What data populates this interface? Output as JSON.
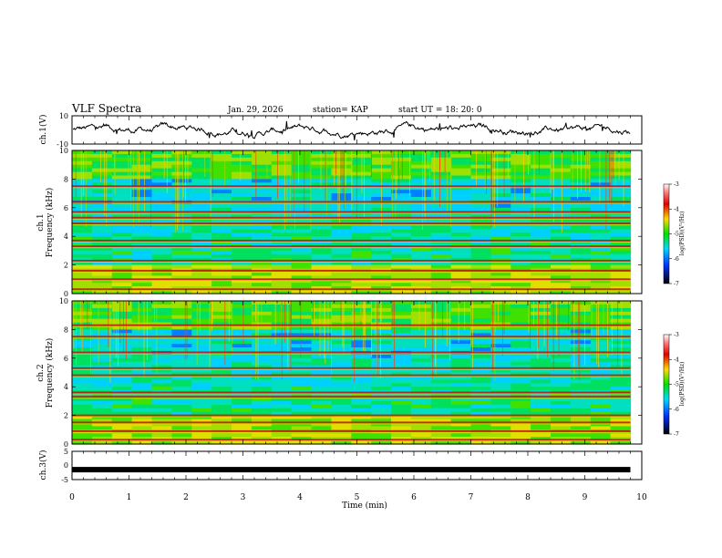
{
  "header": {
    "title": "VLF Spectra",
    "date": "Jan. 29, 2026",
    "station": "station= KAP",
    "start": "start UT =  18: 20: 0"
  },
  "chart_data": [
    {
      "type": "line",
      "panel": "ch1-waveform",
      "ylabel": "ch.1(V)",
      "ylim": [
        -10,
        10
      ],
      "yticks": [
        "10",
        "-10"
      ],
      "trace_mean": 0,
      "trace_noise_amplitude": 3
    },
    {
      "type": "heatmap",
      "panel": "ch1-spectrogram",
      "ylabel_top": "ch.1",
      "ylabel": "Frequency (kHz)",
      "ylim": [
        0,
        10
      ],
      "yticks": [
        "0",
        "2",
        "4",
        "6",
        "8",
        "10"
      ],
      "colorbar": {
        "label": "log(PSD)(V²/Hz)",
        "ticks": [
          "-3",
          "-4",
          "-5",
          "-6",
          "-7"
        ],
        "range": [
          -7,
          -3
        ]
      },
      "data_end_min": 9.8,
      "bands_khz": [
        0.3,
        1.0,
        1.6,
        2.3,
        3.3,
        3.7,
        4.9,
        5.3,
        5.7,
        6.4,
        7.5
      ]
    },
    {
      "type": "heatmap",
      "panel": "ch2-spectrogram",
      "ylabel_top": "ch.2",
      "ylabel": "Frequency (kHz)",
      "ylim": [
        0,
        10
      ],
      "yticks": [
        "0",
        "2",
        "4",
        "6",
        "8",
        "10"
      ],
      "colorbar": {
        "label": "log(PSD)(V²/Hz)",
        "ticks": [
          "-3",
          "-4",
          "-5",
          "-6",
          "-7"
        ],
        "range": [
          -7,
          -3
        ]
      },
      "data_end_min": 9.8,
      "bands_khz": [
        0.3,
        0.9,
        1.5,
        2.0,
        3.3,
        3.6,
        4.8,
        5.3,
        6.4,
        7.5,
        8.3
      ]
    },
    {
      "type": "line",
      "panel": "ch3-signal",
      "ylabel": "ch.3(V)",
      "ylim": [
        -5,
        5
      ],
      "yticks": [
        "5",
        "0",
        "-5"
      ],
      "level": -1.5
    }
  ],
  "xaxis": {
    "label": "Time (min)",
    "range": [
      0,
      10
    ],
    "ticks": [
      "0",
      "1",
      "2",
      "3",
      "4",
      "5",
      "6",
      "7",
      "8",
      "9",
      "10"
    ]
  },
  "colors": {
    "axis": "#000000",
    "trace": "#000000"
  }
}
